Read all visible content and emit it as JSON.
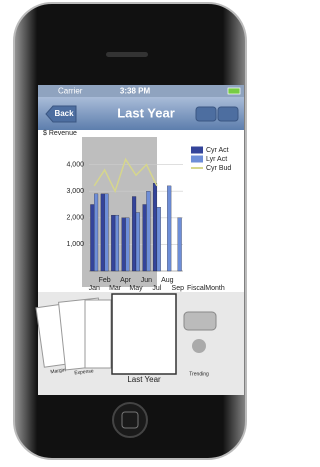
{
  "status_bar": {
    "carrier": "Carrier",
    "time": "3:38 PM"
  },
  "nav_bar": {
    "back": "Back",
    "title": "Last Year"
  },
  "chart_data": {
    "type": "bar",
    "ylabel": "$ Revenue",
    "xlabel": "FiscalMonth",
    "categories": [
      "Jan",
      "Feb",
      "Mar",
      "Apr",
      "May",
      "Jun",
      "Jul",
      "Aug",
      "Sep"
    ],
    "series": [
      {
        "name": "Cyr Act",
        "color": "#34449a",
        "values": [
          2500,
          2900,
          2100,
          2000,
          2800,
          2500,
          3300,
          null,
          null
        ]
      },
      {
        "name": "Lyr Act",
        "color": "#6e8ed8",
        "values": [
          2900,
          2900,
          2100,
          2000,
          2200,
          3000,
          2400,
          3200,
          2000
        ]
      },
      {
        "name": "Cyr Bud",
        "type": "line",
        "color": "#d6d68c",
        "values": [
          3200,
          3800,
          3000,
          4200,
          3600,
          4000,
          3200,
          null,
          null
        ]
      }
    ],
    "ylim": [
      0,
      5000
    ],
    "yticks": [
      {
        "value": 1000,
        "label": "1,000"
      },
      {
        "value": 2000,
        "label": "2,000"
      },
      {
        "value": 3000,
        "label": "3,000"
      },
      {
        "value": 4000,
        "label": "4,000"
      }
    ],
    "grid": true
  },
  "carousel": [
    "Margin",
    "Expense",
    "Last Year",
    "Trending"
  ]
}
